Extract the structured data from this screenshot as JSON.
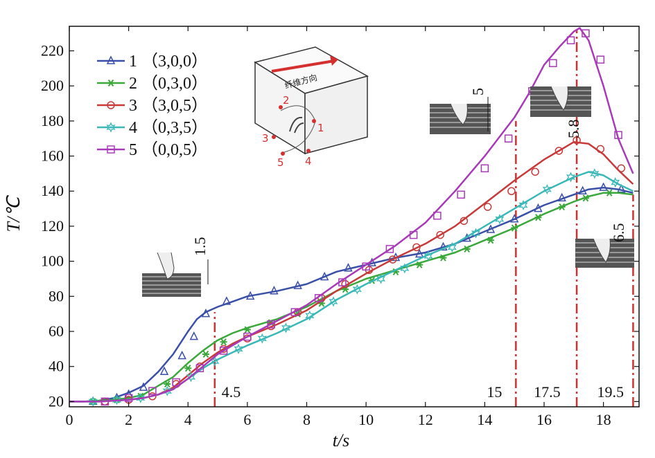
{
  "chart_data": {
    "type": "line",
    "xlabel": "t/s",
    "ylabel": "T/℃",
    "xlim": [
      0,
      19.2
    ],
    "ylim": [
      17,
      234
    ],
    "xticks": [
      0,
      2,
      4,
      6,
      8,
      10,
      12,
      14,
      16,
      18
    ],
    "yticks": [
      20,
      40,
      60,
      80,
      100,
      120,
      140,
      160,
      180,
      200,
      220
    ],
    "legend_position": "top-left",
    "grid": false,
    "series": [
      {
        "name": "1 （3,0,0）",
        "legend_num": "1",
        "legend_coord": "（3,0,0）",
        "color": "#3a4fa8",
        "marker": "triangle",
        "x": [
          0,
          0.5,
          1.0,
          1.5,
          2.0,
          2.5,
          3.0,
          3.5,
          4.0,
          4.3,
          4.6,
          5.0,
          5.5,
          6.0,
          7.0,
          8.0,
          9.0,
          10.0,
          11.0,
          12.0,
          13.0,
          14.0,
          15.0,
          16.0,
          17.0,
          17.5,
          18.0,
          18.5,
          19.0
        ],
        "y": [
          20,
          20,
          20.5,
          22,
          25,
          29,
          37,
          47,
          60,
          67,
          71,
          74,
          77,
          80,
          83,
          87,
          94,
          98,
          102,
          105,
          110,
          117,
          124,
          132,
          138,
          141,
          142,
          141,
          139
        ],
        "marker_x": [
          0.8,
          1.6,
          2.0,
          2.5,
          3.2,
          3.8,
          4.2,
          4.6,
          5.3,
          6.1,
          6.9,
          7.7,
          8.6,
          9.4,
          10.2,
          11.0,
          11.8,
          12.6,
          13.4,
          14.2,
          15.0,
          15.8,
          16.6,
          17.3,
          18.0,
          18.6
        ],
        "marker_y": [
          20,
          22,
          24,
          28,
          37,
          46,
          57,
          70,
          77,
          80,
          83,
          86,
          91,
          96,
          99,
          102,
          104,
          108,
          113,
          118,
          124,
          130,
          136,
          140,
          142,
          141
        ]
      },
      {
        "name": "2 （0,3,0）",
        "legend_num": "2",
        "legend_coord": "（0,3,0）",
        "color": "#3aa83a",
        "marker": "asterisk",
        "x": [
          0,
          0.5,
          1.0,
          1.5,
          2.0,
          2.5,
          3.0,
          3.5,
          4.0,
          4.5,
          5.0,
          5.5,
          6.0,
          7.0,
          8.0,
          9.0,
          10.0,
          11.0,
          12.0,
          13.0,
          14.0,
          15.0,
          16.0,
          17.0,
          17.5,
          18.0,
          18.5,
          19.0
        ],
        "y": [
          20,
          20,
          20.5,
          21,
          22,
          24,
          29,
          34,
          42,
          49,
          55,
          59,
          62,
          67,
          74,
          83,
          90,
          95,
          100,
          105,
          112,
          119,
          127,
          134,
          137,
          139,
          139,
          138
        ],
        "marker_x": [
          0.8,
          1.6,
          2.4,
          3.3,
          4.0,
          4.6,
          5.2,
          6.0,
          6.8,
          7.7,
          8.5,
          9.3,
          10.2,
          11.0,
          11.8,
          12.6,
          13.4,
          14.2,
          15.0,
          15.8,
          16.6,
          17.4,
          18.2
        ],
        "marker_y": [
          20,
          21,
          23,
          30,
          39,
          47,
          54,
          61,
          65,
          70,
          76,
          84,
          89,
          94,
          98,
          102,
          107,
          112,
          119,
          125,
          131,
          136,
          139
        ]
      },
      {
        "name": "3 （3,0,5）",
        "legend_num": "3",
        "legend_coord": "（3,0,5）",
        "color": "#c83a3a",
        "marker": "circle",
        "x": [
          0,
          0.5,
          1.0,
          1.5,
          2.0,
          2.5,
          3.0,
          3.5,
          4.0,
          4.5,
          5.0,
          5.5,
          6.0,
          7.0,
          8.0,
          9.0,
          10.0,
          11.0,
          12.0,
          13.0,
          14.0,
          15.0,
          16.0,
          16.5,
          17.0,
          17.5,
          18.0,
          18.5,
          19.0
        ],
        "y": [
          20,
          20,
          20,
          20.5,
          21,
          22,
          24,
          28,
          35,
          42,
          48,
          53,
          57,
          64,
          72,
          83,
          93,
          102,
          110,
          120,
          133,
          146,
          158,
          163,
          168,
          167,
          161,
          152,
          144
        ],
        "marker_x": [
          1.2,
          2.0,
          2.8,
          3.6,
          4.4,
          5.2,
          6.0,
          6.8,
          7.7,
          8.5,
          9.3,
          10.1,
          10.9,
          11.7,
          12.5,
          13.3,
          14.1,
          14.9,
          15.7,
          16.5,
          17.1,
          17.9,
          18.6
        ],
        "marker_y": [
          20,
          21,
          23,
          30,
          40,
          50,
          56,
          63,
          71,
          79,
          87,
          95,
          101,
          108,
          115,
          123,
          131,
          140,
          151,
          163,
          169,
          164,
          153
        ]
      },
      {
        "name": "4 （0,3,5）",
        "legend_num": "4",
        "legend_coord": "（0,3,5）",
        "color": "#3ab8b8",
        "marker": "star",
        "x": [
          0,
          0.5,
          1.0,
          1.5,
          2.0,
          2.5,
          3.0,
          3.5,
          4.0,
          4.5,
          5.0,
          5.5,
          6.0,
          7.0,
          8.0,
          9.0,
          10.0,
          11.0,
          12.0,
          13.0,
          14.0,
          15.0,
          16.0,
          17.0,
          17.5,
          18.0,
          18.5,
          19.0
        ],
        "y": [
          20,
          20,
          20,
          20.5,
          21,
          22,
          24,
          27,
          33,
          39,
          44,
          48,
          52,
          59,
          67,
          78,
          87,
          95,
          103,
          110,
          120,
          130,
          140,
          148,
          151,
          149,
          144,
          140
        ],
        "marker_x": [
          0.8,
          1.6,
          2.4,
          3.3,
          4.1,
          4.9,
          5.7,
          6.5,
          7.3,
          8.1,
          8.9,
          9.7,
          10.5,
          11.3,
          12.1,
          12.9,
          13.7,
          14.5,
          15.3,
          16.1,
          16.9,
          17.7,
          18.4
        ],
        "marker_y": [
          20,
          21,
          22,
          26,
          34,
          43,
          50,
          56,
          62,
          69,
          77,
          84,
          90,
          96,
          103,
          108,
          116,
          124,
          132,
          141,
          148,
          150,
          145
        ]
      },
      {
        "name": "5 （0,0,5）",
        "legend_num": "5",
        "legend_coord": "（0,0,5）",
        "color": "#a83ab8",
        "marker": "square",
        "x": [
          0,
          0.5,
          1.0,
          1.5,
          2.0,
          2.5,
          3.0,
          3.5,
          4.0,
          4.5,
          5.0,
          6.0,
          7.0,
          8.0,
          9.0,
          10.0,
          11.0,
          12.0,
          13.0,
          14.0,
          15.0,
          15.5,
          16.0,
          16.5,
          17.0,
          17.2,
          17.5,
          18.0,
          18.5,
          19.0
        ],
        "y": [
          20,
          20,
          20,
          20.5,
          21,
          22,
          24,
          27,
          33,
          40,
          47,
          57,
          66,
          75,
          87,
          98,
          109,
          122,
          140,
          160,
          182,
          196,
          212,
          222,
          231,
          233,
          226,
          200,
          170,
          150
        ],
        "marker_x": [
          1.2,
          2.0,
          2.8,
          3.6,
          4.4,
          5.2,
          6.0,
          6.8,
          7.6,
          8.4,
          9.2,
          10.0,
          10.8,
          11.6,
          12.4,
          13.2,
          14.0,
          14.8,
          15.6,
          16.3,
          16.9,
          17.4,
          17.9,
          18.5
        ],
        "marker_y": [
          20,
          22,
          26,
          31,
          39,
          49,
          57,
          64,
          71,
          79,
          88,
          97,
          107,
          115,
          126,
          138,
          153,
          170,
          197,
          213,
          226,
          230,
          215,
          172
        ]
      }
    ],
    "vlines": [
      {
        "x": 4.9,
        "label": "4.5",
        "from": 17,
        "to": 71
      },
      {
        "x": 15.05,
        "label": "15",
        "from": 17,
        "to": 180
      },
      {
        "x": 17.1,
        "label": "17.5",
        "from": 17,
        "to": 232
      },
      {
        "x": 19.0,
        "label": "19.5",
        "from": 17,
        "to": 138
      }
    ],
    "cut_annotations": [
      "1.5",
      "5",
      "5.8",
      "6.5"
    ]
  },
  "inset": {
    "direction_label": "纤维方向",
    "points": [
      "1",
      "2",
      "3",
      "4",
      "5"
    ]
  },
  "colors": {
    "axis": "#111111",
    "vline": "#d43030",
    "inset_red": "#d43030"
  }
}
